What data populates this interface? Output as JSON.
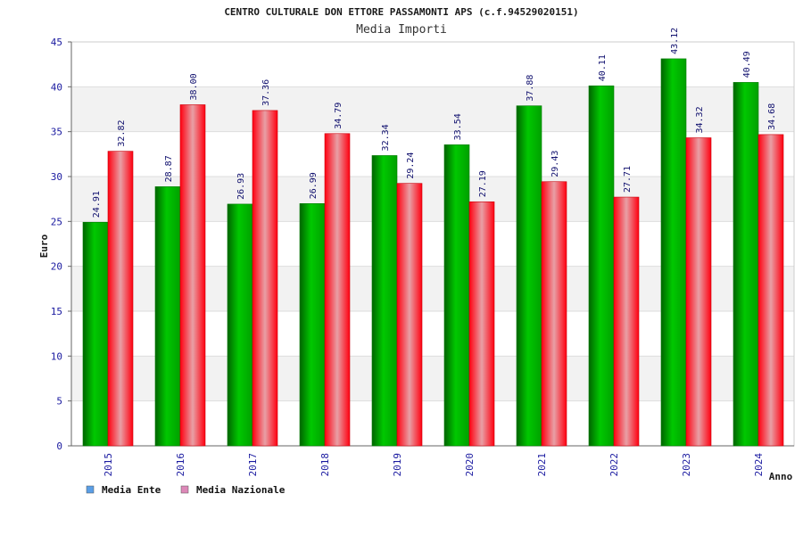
{
  "chart_data": {
    "type": "bar",
    "title": "CENTRO CULTURALE DON ETTORE PASSAMONTI APS (c.f.94529020151)",
    "subtitle": "Media Importi",
    "xlabel": "Anno",
    "ylabel": "Euro",
    "categories": [
      "2015",
      "2016",
      "2017",
      "2018",
      "2019",
      "2020",
      "2021",
      "2022",
      "2023",
      "2024"
    ],
    "series": [
      {
        "name": "Media Ente",
        "values": [
          24.91,
          28.87,
          26.93,
          26.99,
          32.34,
          33.54,
          37.88,
          40.11,
          43.12,
          40.49
        ],
        "labels": [
          "24.91",
          "28.87",
          "26.93",
          "26.99",
          "32.34",
          "33.54",
          "37.88",
          "40.11",
          "43.12",
          "40.49"
        ],
        "color": "#00b400",
        "legend_color": "#5a9ee6"
      },
      {
        "name": "Media Nazionale",
        "values": [
          32.82,
          38.0,
          37.36,
          34.79,
          29.24,
          27.19,
          29.43,
          27.71,
          34.32,
          34.68
        ],
        "labels": [
          "32.82",
          "38.00",
          "37.36",
          "34.79",
          "29.24",
          "27.19",
          "29.43",
          "27.71",
          "34.32",
          "34.68"
        ],
        "color": "#ee1a2a",
        "legend_color": "#dd88b8"
      }
    ],
    "ylim": [
      0,
      45
    ],
    "yticks": [
      "0",
      "5",
      "10",
      "15",
      "20",
      "25",
      "30",
      "35",
      "40",
      "45"
    ],
    "grid": true,
    "legend_position": "bottom-left"
  }
}
